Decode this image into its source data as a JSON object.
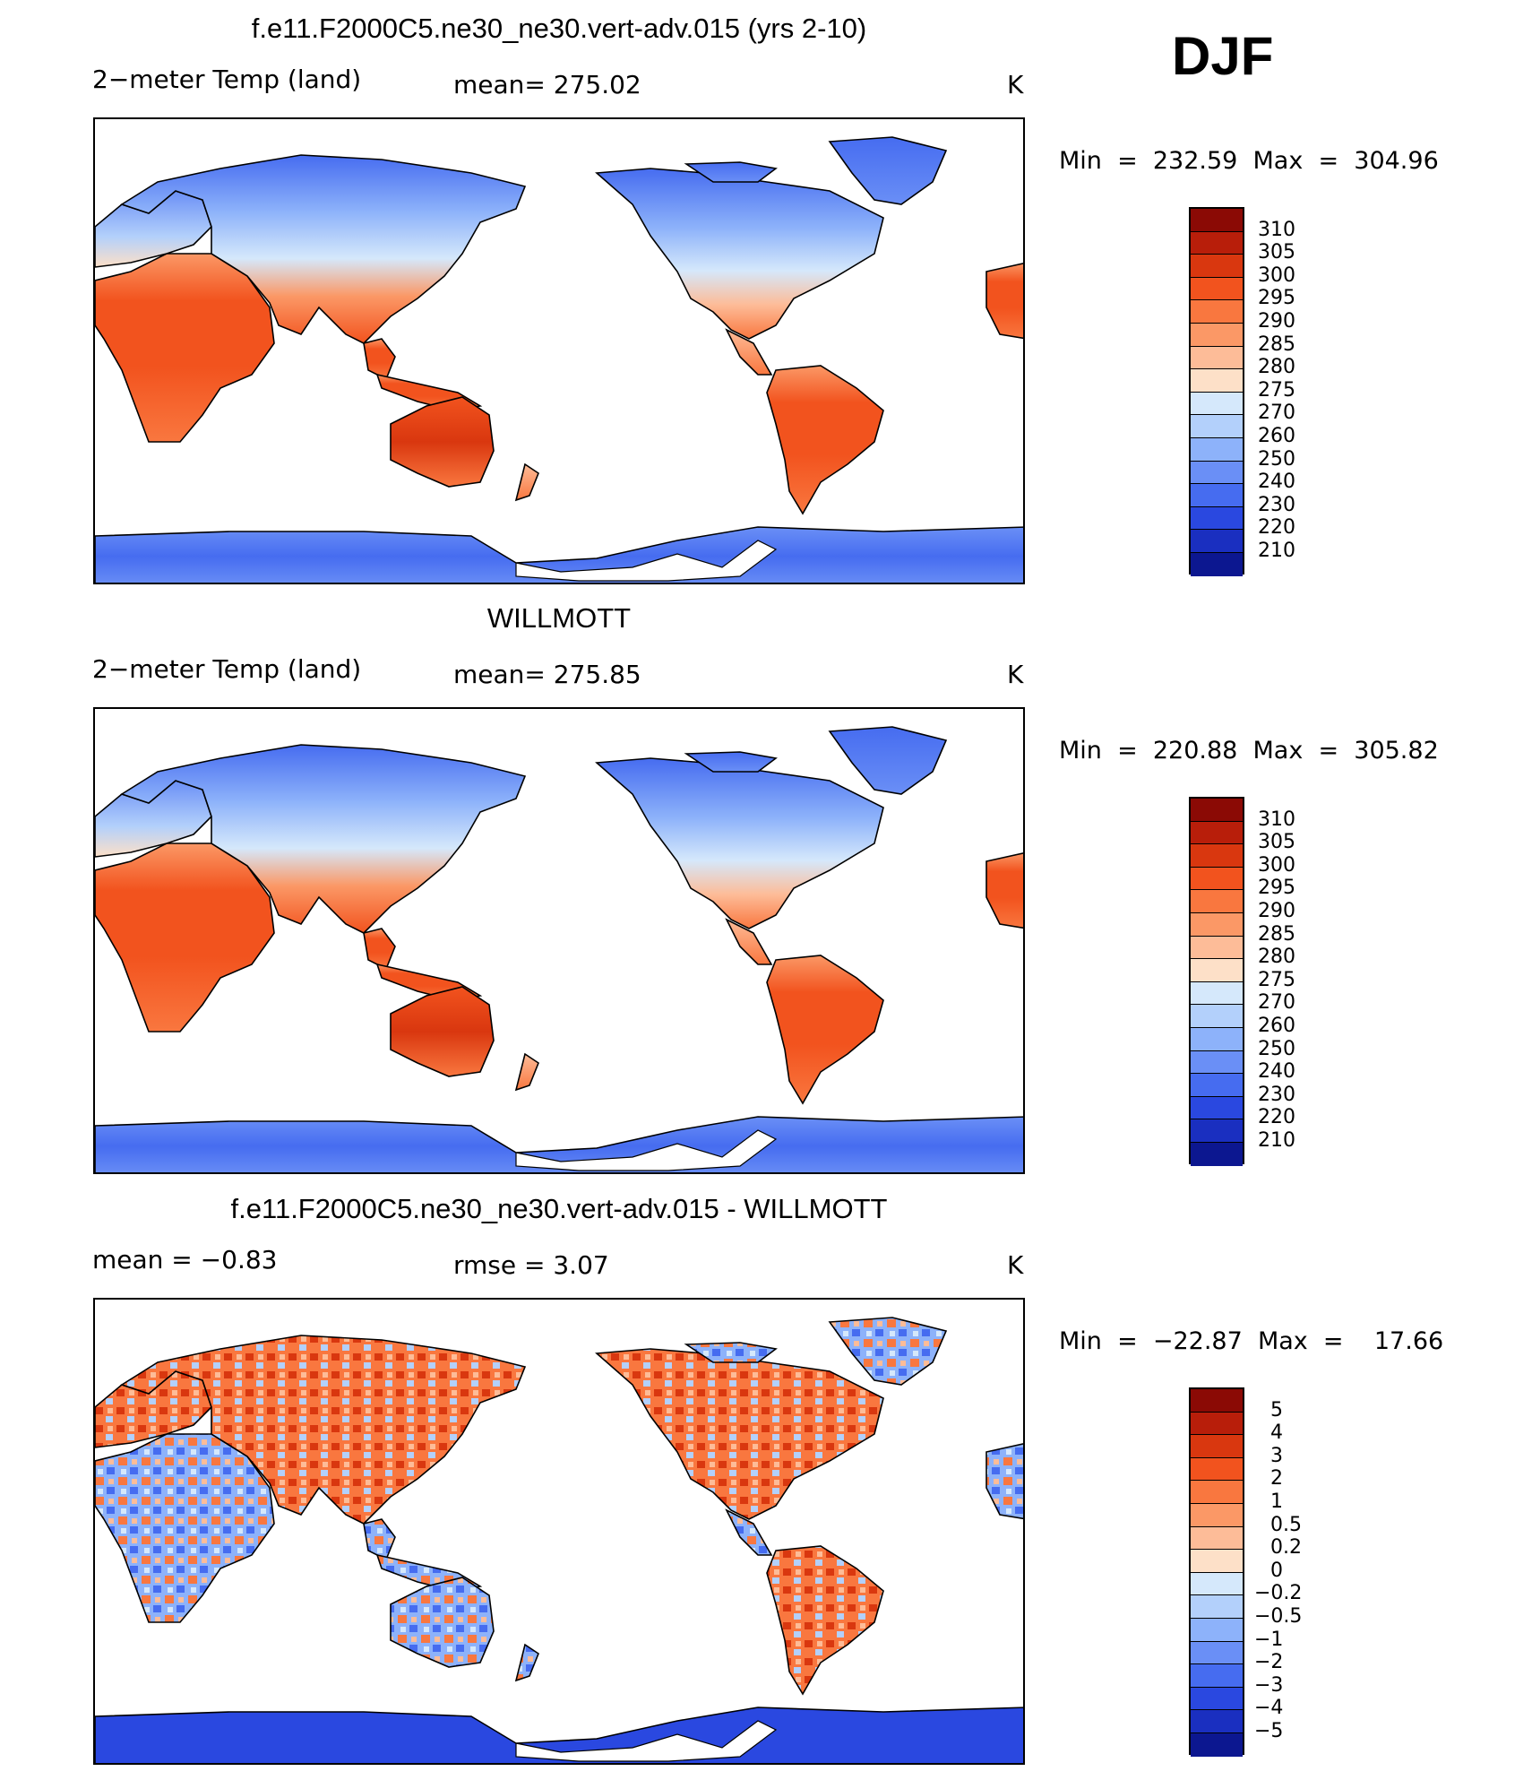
{
  "season": "DJF",
  "panels": [
    {
      "title": "f.e11.F2000C5.ne30_ne30.vert-adv.015 (yrs 2-10)",
      "left_label": "2−meter Temp (land)",
      "center_label": "mean=  275.02",
      "units": "K",
      "min_max": "Min  =  232.59  Max  =  304.96",
      "colorbar_ticks": [
        "310",
        "305",
        "300",
        "295",
        "290",
        "285",
        "280",
        "275",
        "270",
        "260",
        "250",
        "240",
        "230",
        "220",
        "210"
      ],
      "colors": [
        "#8b0a05",
        "#b81e0a",
        "#d9370f",
        "#f2531e",
        "#f9773f",
        "#fb9866",
        "#fdbc98",
        "#fde0c8",
        "#d5e8fb",
        "#b3d0fb",
        "#8db2fa",
        "#6a8ff6",
        "#466cf0",
        "#2a48e0",
        "#1a2fc0",
        "#0c1790"
      ],
      "map_type": "absolute"
    },
    {
      "title": "WILLMOTT",
      "left_label": "2−meter Temp (land)",
      "center_label": "mean=  275.85",
      "units": "K",
      "min_max": "Min  =  220.88  Max  =  305.82",
      "colorbar_ticks": [
        "310",
        "305",
        "300",
        "295",
        "290",
        "285",
        "280",
        "275",
        "270",
        "260",
        "250",
        "240",
        "230",
        "220",
        "210"
      ],
      "colors": [
        "#8b0a05",
        "#b81e0a",
        "#d9370f",
        "#f2531e",
        "#f9773f",
        "#fb9866",
        "#fdbc98",
        "#fde0c8",
        "#d5e8fb",
        "#b3d0fb",
        "#8db2fa",
        "#6a8ff6",
        "#466cf0",
        "#2a48e0",
        "#1a2fc0",
        "#0c1790"
      ],
      "map_type": "absolute"
    },
    {
      "title": "f.e11.F2000C5.ne30_ne30.vert-adv.015 - WILLMOTT",
      "left_label": "mean  =    −0.83",
      "center_label": "rmse  =     3.07",
      "units": "K",
      "min_max": "Min  =  −22.87  Max  =    17.66",
      "colorbar_ticks": [
        "5",
        "4",
        "3",
        "2",
        "1",
        "0.5",
        "0.2",
        "0",
        "−0.2",
        "−0.5",
        "−1",
        "−2",
        "−3",
        "−4",
        "−5"
      ],
      "colors": [
        "#8b0a05",
        "#b81e0a",
        "#d9370f",
        "#f2531e",
        "#f9773f",
        "#fb9866",
        "#fdbc98",
        "#fde0c8",
        "#d5e8fb",
        "#b3d0fb",
        "#8db2fa",
        "#6a8ff6",
        "#466cf0",
        "#2a48e0",
        "#1a2fc0",
        "#0c1790"
      ],
      "map_type": "difference"
    }
  ]
}
